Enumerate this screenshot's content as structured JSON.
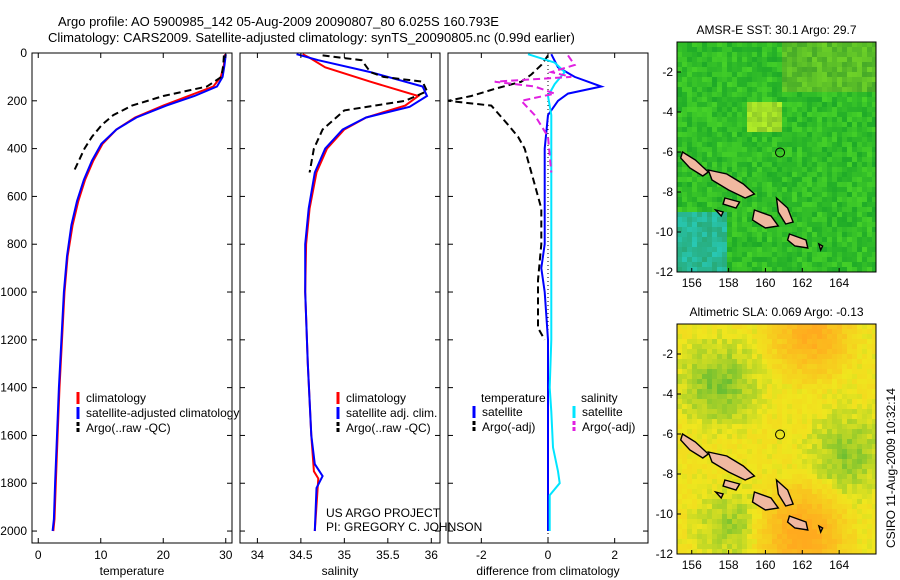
{
  "title": {
    "line1": "Argo profile: AO 5900985_142 05-Aug-2009 20090807_80 6.025S 160.793E",
    "line2": "Climatology: CARS2009. Satellite-adjusted climatology: synTS_20090805.nc (0.99d earlier)"
  },
  "credit": "CSIRO 11-Aug-2009 10:32:14",
  "project": {
    "line1": "US ARGO PROJECT",
    "line2": "PI: GREGORY C. JOHNSON"
  },
  "colors": {
    "climatology": "#ff0000",
    "satellite": "#0000ff",
    "argo": "#000000",
    "salinity_satellite": "#00e5ff",
    "salinity_argo": "#e020e0"
  },
  "chart_data": [
    {
      "type": "line",
      "id": "temperature",
      "xlabel": "temperature",
      "xlim": [
        -1,
        31
      ],
      "xticks": [
        0,
        10,
        20,
        30
      ],
      "ylim": [
        2050,
        0
      ],
      "yticks": [
        0,
        200,
        400,
        600,
        800,
        1000,
        1200,
        1400,
        1600,
        1800,
        2000
      ],
      "y_inverted": true,
      "legend": [
        "climatology",
        "satellite-adjusted climatology",
        "Argo(..raw -QC)"
      ],
      "series": [
        {
          "name": "climatology",
          "style": "solid",
          "color": "#ff0000",
          "x": [
            29.9,
            29.7,
            29.2,
            28.0,
            24.0,
            20.0,
            15.5,
            12.5,
            10.3,
            8.8,
            7.5,
            6.4,
            5.5,
            4.7,
            4.2,
            3.8,
            3.4,
            3.1,
            2.8,
            2.6,
            2.4
          ],
          "y": [
            5,
            50,
            100,
            140,
            180,
            220,
            270,
            320,
            380,
            450,
            530,
            620,
            720,
            850,
            1000,
            1200,
            1400,
            1600,
            1800,
            1950,
            2000
          ]
        },
        {
          "name": "satellite-adjusted climatology",
          "style": "solid",
          "color": "#0000ff",
          "x": [
            30.0,
            29.8,
            29.5,
            28.6,
            25.0,
            20.5,
            15.7,
            12.5,
            10.1,
            8.6,
            7.3,
            6.2,
            5.3,
            4.6,
            4.1,
            3.7,
            3.3,
            3.0,
            2.7,
            2.5,
            2.3
          ],
          "y": [
            5,
            50,
            100,
            140,
            180,
            220,
            270,
            320,
            380,
            450,
            530,
            620,
            720,
            850,
            1000,
            1200,
            1400,
            1600,
            1800,
            1950,
            2000
          ]
        },
        {
          "name": "Argo(..raw -QC)",
          "style": "dashed",
          "color": "#000000",
          "x": [
            29.7,
            29.6,
            29.3,
            27.0,
            20.0,
            15.0,
            12.0,
            10.2,
            8.6,
            7.4,
            6.5,
            5.6
          ],
          "y": [
            10,
            50,
            100,
            140,
            180,
            220,
            260,
            300,
            350,
            400,
            450,
            500
          ]
        }
      ]
    },
    {
      "type": "line",
      "id": "salinity",
      "xlabel": "salinity",
      "xlim": [
        33.8,
        36.1
      ],
      "xticks": [
        34,
        34.5,
        35,
        35.5,
        36
      ],
      "xticklabels": [
        "34",
        "34.5",
        "35",
        "35.5",
        "36"
      ],
      "ylim": [
        2050,
        0
      ],
      "y_inverted": true,
      "legend": [
        "climatology",
        "satellite adj. clim.",
        "Argo(..raw -QC)"
      ],
      "series": [
        {
          "name": "climatology",
          "style": "solid",
          "color": "#ff0000",
          "x": [
            34.52,
            34.6,
            34.78,
            35.3,
            35.85,
            35.7,
            35.25,
            35.0,
            34.8,
            34.68,
            34.6,
            34.56,
            34.55,
            34.58,
            34.62,
            34.65,
            34.7,
            34.66
          ],
          "y": [
            5,
            20,
            60,
            120,
            180,
            220,
            270,
            320,
            400,
            500,
            650,
            800,
            1000,
            1300,
            1600,
            1750,
            1780,
            2000
          ]
        },
        {
          "name": "satellite adj. clim.",
          "style": "solid",
          "color": "#0000ff",
          "x": [
            34.45,
            34.7,
            35.3,
            35.9,
            35.95,
            35.75,
            35.25,
            34.98,
            34.78,
            34.66,
            34.59,
            34.55,
            34.55,
            34.58,
            34.62,
            34.66,
            34.75,
            34.68,
            34.66
          ],
          "y": [
            5,
            30,
            80,
            140,
            180,
            225,
            270,
            320,
            400,
            500,
            650,
            800,
            1000,
            1300,
            1600,
            1720,
            1770,
            1820,
            2000
          ]
        },
        {
          "name": "Argo(..raw -QC)",
          "style": "dashed",
          "color": "#000000",
          "x": [
            34.75,
            35.2,
            35.3,
            35.45,
            35.9,
            35.95,
            35.7,
            35.0,
            34.75,
            34.65,
            34.6
          ],
          "y": [
            10,
            30,
            80,
            100,
            120,
            160,
            200,
            240,
            320,
            400,
            500
          ]
        }
      ]
    },
    {
      "type": "line",
      "id": "difference",
      "xlabel": "difference from climatology",
      "xlim": [
        -3,
        3
      ],
      "xticks": [
        -2,
        0,
        2
      ],
      "ylim": [
        2050,
        0
      ],
      "y_inverted": true,
      "legend_headers": [
        "temperature",
        "salinity"
      ],
      "legend": [
        "satellite",
        "Argo(-adj)",
        "satellite",
        "Argo(-adj)"
      ],
      "series": [
        {
          "name": "satellite",
          "group": "temperature",
          "style": "solid",
          "color": "#0000ff",
          "x": [
            0.1,
            0.3,
            0.8,
            1.6,
            0.6,
            0.3,
            0.0,
            -0.1,
            -0.1,
            -0.1,
            -0.1,
            -0.2,
            -0.1,
            0.0,
            0.0,
            0.0
          ],
          "y": [
            5,
            60,
            100,
            140,
            170,
            200,
            260,
            400,
            550,
            700,
            800,
            900,
            1000,
            1200,
            1500,
            2000
          ]
        },
        {
          "name": "Argo(-adj)",
          "group": "temperature",
          "style": "dashed",
          "color": "#000000",
          "x": [
            0.0,
            -0.2,
            -0.5,
            -0.8,
            -1.6,
            -2.3,
            -3.0,
            -1.7,
            -1.2,
            -0.9,
            -0.7,
            -0.6,
            -0.4,
            -0.2,
            -0.2,
            -0.3,
            -0.3,
            -0.1
          ],
          "y": [
            10,
            50,
            90,
            120,
            150,
            180,
            200,
            220,
            300,
            350,
            400,
            450,
            550,
            650,
            800,
            950,
            1150,
            1200
          ]
        },
        {
          "name": "satellite",
          "group": "salinity",
          "style": "solid",
          "color": "#00e5ff",
          "x": [
            -0.6,
            0.2,
            0.5,
            0.2,
            0.0,
            0.1,
            0.1,
            0.1,
            0.1,
            0.1,
            0.1,
            0.05,
            0.1,
            0.15,
            0.3,
            0.35,
            0.05,
            0.05
          ],
          "y": [
            5,
            40,
            80,
            130,
            180,
            260,
            400,
            600,
            800,
            1000,
            1200,
            1400,
            1500,
            1650,
            1750,
            1800,
            1850,
            2000
          ]
        },
        {
          "name": "Argo(-adj)",
          "group": "salinity",
          "style": "dashed",
          "color": "#e020e0",
          "x": [
            0.6,
            0.8,
            0.1,
            0.7,
            -1.6,
            -0.4,
            0.2,
            -0.8,
            -0.4,
            0.0,
            0.1
          ],
          "y": [
            10,
            50,
            80,
            100,
            120,
            140,
            170,
            200,
            260,
            350,
            500
          ]
        }
      ]
    },
    {
      "type": "heatmap",
      "id": "sst-map",
      "title": "AMSR-E SST: 30.1 Argo: 29.7",
      "xlim": [
        155.2,
        166
      ],
      "ylim": [
        -12,
        -0.5
      ],
      "xticks": [
        156,
        158,
        160,
        162,
        164
      ],
      "yticks": [
        -2,
        -4,
        -6,
        -8,
        -10,
        -12
      ],
      "marker": {
        "lon": 160.793,
        "lat": -6.025
      }
    },
    {
      "type": "heatmap",
      "id": "sla-map",
      "title": "Altimetric SLA: 0.069 Argo: -0.13",
      "xlim": [
        155.2,
        166
      ],
      "ylim": [
        -12,
        -0.5
      ],
      "xticks": [
        156,
        158,
        160,
        162,
        164
      ],
      "yticks": [
        -2,
        -4,
        -6,
        -8,
        -10,
        -12
      ],
      "marker": {
        "lon": 160.793,
        "lat": -6.025
      }
    }
  ]
}
